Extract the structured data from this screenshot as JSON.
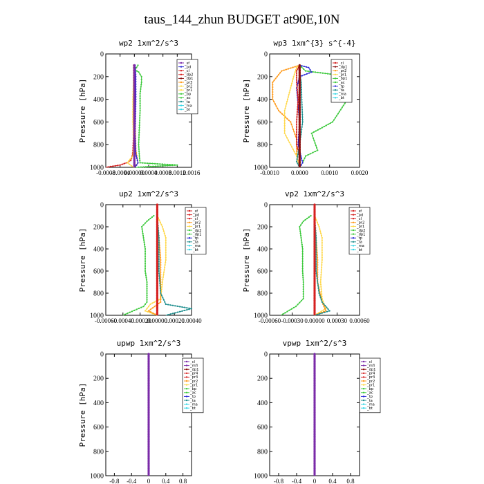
{
  "figure_title": "taus_144_zhun  BUDGET at90E,10N",
  "colors": {
    "red": "#d62020",
    "darkred": "#8a0f0f",
    "orange": "#ff9a1a",
    "yellow": "#ffd84a",
    "green": "#3cc93c",
    "blue": "#2a2ad6",
    "teal": "#1f8f8f",
    "cyan": "#33d6e6",
    "purple": "#7a2aa8",
    "magenta": "#d628d6"
  },
  "chart_data": [
    {
      "type": "line",
      "title": "wp2  1xm^2/s^3",
      "ylabel": "Pressure [hPa]",
      "xlim": [
        -0.0008,
        0.0016
      ],
      "ylim": [
        1000,
        0
      ],
      "xticks": [
        "-0.0008",
        "-0.0004",
        "0.00000",
        "0.0004",
        "0.0008",
        "0.0012",
        "0.0016"
      ],
      "xtick_values": [
        -0.0008,
        -0.0004,
        0,
        0.0004,
        0.0008,
        0.0012,
        0.0016
      ],
      "yticks": [
        "0",
        "200",
        "400",
        "600",
        "800",
        "1000"
      ],
      "legend": [
        "_sf",
        "_pd",
        "_cl",
        "_dp2",
        "_dp1",
        "_pr3",
        "_pr2",
        "_pr1",
        "_bp",
        "_ac",
        "_ta",
        "_ma",
        "_bt"
      ],
      "legend_colors": [
        "#7a2aa8",
        "#2a2ad6",
        "#d62020",
        "#d62020",
        "#8a0f0f",
        "#ff9a1a",
        "#ffd84a",
        "#ffd84a",
        "#3cc93c",
        "#3cc93c",
        "#1f8f8f",
        "#33d6e6",
        "#33d6e6"
      ],
      "series": [
        {
          "color": "#3cc93c",
          "x": [
            0.0001,
            2e-05,
            0.00012,
            0.0002,
            0.0002,
            0.00016,
            0.00016,
            0.00014,
            0.00012,
            0.00014,
            0.00016,
            0.0012,
            5e-05
          ],
          "y": [
            100,
            140,
            160,
            200,
            250,
            350,
            500,
            650,
            800,
            900,
            960,
            980,
            1000
          ]
        },
        {
          "color": "#d62020",
          "x": [
            -2e-05,
            -2e-05,
            -2e-05,
            -2e-05,
            -4e-05,
            -6e-05,
            -0.0001,
            -0.00022,
            -0.0004,
            -0.0008
          ],
          "y": [
            100,
            300,
            500,
            700,
            850,
            900,
            940,
            960,
            980,
            1000
          ]
        },
        {
          "color": "#ffd84a",
          "x": [
            0,
            -2e-05,
            -4e-05,
            -4e-05,
            -2e-05,
            -4e-05,
            -0.0002,
            -2e-05
          ],
          "y": [
            100,
            200,
            400,
            600,
            800,
            900,
            960,
            1000
          ]
        },
        {
          "color": "#ff9a1a",
          "x": [
            0,
            2e-05,
            2e-05,
            4e-05,
            0.0001,
            0
          ],
          "y": [
            100,
            300,
            600,
            850,
            960,
            1000
          ]
        },
        {
          "color": "#2a2ad6",
          "x": [
            2e-05,
            4e-05,
            4e-05,
            2e-05,
            4e-05,
            0.0001,
            2e-05
          ],
          "y": [
            100,
            200,
            400,
            700,
            880,
            960,
            1000
          ]
        },
        {
          "color": "#7a2aa8",
          "x": [
            0,
            0,
            0,
            0,
            0,
            0
          ],
          "y": [
            100,
            300,
            500,
            700,
            900,
            1000
          ]
        }
      ]
    },
    {
      "type": "line",
      "title": "wp3  1xm^{3} s^{-4}",
      "ylabel": "Pressure [hPa]",
      "xlim": [
        -0.001,
        0.002
      ],
      "ylim": [
        1000,
        0
      ],
      "xticks": [
        "-0.0010",
        "0.0000",
        "0.0010",
        "0.0020"
      ],
      "xtick_values": [
        -0.001,
        0,
        0.001,
        0.002
      ],
      "yticks": [
        "0",
        "200",
        "400",
        "600",
        "800",
        "1000"
      ],
      "legend": [
        "_cl",
        "_dp1",
        "_pr2",
        "_pr1",
        "_bp1",
        "_ac",
        "_tp",
        "_ta",
        "_ma",
        "_bt"
      ],
      "legend_colors": [
        "#d62020",
        "#8a0f0f",
        "#ff9a1a",
        "#ffd84a",
        "#3cc93c",
        "#3cc93c",
        "#2a2ad6",
        "#1f8f8f",
        "#33d6e6",
        "#33d6e6"
      ],
      "series": [
        {
          "color": "#3cc93c",
          "x": [
            0,
            0.0002,
            0.0011,
            0.0017,
            0.0016,
            0.0011,
            0.0004,
            0.0006,
            0.0002,
            0.0001,
            0
          ],
          "y": [
            100,
            150,
            180,
            250,
            400,
            600,
            700,
            850,
            900,
            960,
            1000
          ]
        },
        {
          "color": "#ff9a1a",
          "x": [
            0,
            -0.0006,
            -0.0009,
            -0.0009,
            -0.0007,
            -0.0003,
            -0.0001,
            -0.0001,
            0
          ],
          "y": [
            100,
            150,
            250,
            400,
            500,
            600,
            750,
            900,
            1000
          ]
        },
        {
          "color": "#ffd84a",
          "x": [
            0,
            -0.0001,
            -0.0002,
            -0.0003,
            -0.0004,
            -0.0005,
            -0.0005,
            -0.0003,
            -0.0001,
            0
          ],
          "y": [
            100,
            120,
            200,
            300,
            400,
            500,
            700,
            800,
            900,
            1000
          ]
        },
        {
          "color": "#2a2ad6",
          "x": [
            0,
            0.0003,
            0.0004,
            0,
            -0.0001,
            0,
            -5e-05,
            0.0001,
            0
          ],
          "y": [
            100,
            120,
            160,
            200,
            300,
            600,
            800,
            960,
            1000
          ]
        },
        {
          "color": "#d62020",
          "x": [
            0,
            -0.0001,
            -0.0001,
            -5e-05,
            -0.0001,
            -0.0001,
            0,
            0
          ],
          "y": [
            100,
            150,
            250,
            400,
            600,
            800,
            900,
            1000
          ]
        },
        {
          "color": "#1f8f8f",
          "x": [
            0,
            5e-05,
            0.0001,
            0,
            -0.0001,
            0
          ],
          "y": [
            150,
            250,
            600,
            800,
            950,
            1000
          ]
        },
        {
          "color": "#8a0f0f",
          "x": [
            0,
            0,
            0,
            0,
            0
          ],
          "y": [
            100,
            300,
            600,
            800,
            1000
          ]
        }
      ]
    },
    {
      "type": "line",
      "title": "up2  1xm^2/s^3",
      "ylabel": "Pressure [hPa]",
      "xlim": [
        -0.0006,
        0.0004
      ],
      "ylim": [
        1000,
        0
      ],
      "xticks": [
        "-0.00060",
        "-0.00040",
        "-0.00020",
        "0.00000",
        "0.00020",
        "0.00040"
      ],
      "xtick_values": [
        -0.0006,
        -0.0004,
        -0.0002,
        0,
        0.0002,
        0.0004
      ],
      "yticks": [
        "0",
        "200",
        "400",
        "600",
        "800",
        "1000"
      ],
      "legend": [
        "_sf",
        "_pd",
        "_cl",
        "_pr2",
        "_pr1",
        "_dp2",
        "_dp1",
        "_tp",
        "_ta",
        "_ma",
        "_bt"
      ],
      "legend_colors": [
        "#d62020",
        "#d62020",
        "#d62020",
        "#ff9a1a",
        "#ffd84a",
        "#3cc93c",
        "#3cc93c",
        "#2a2ad6",
        "#1f8f8f",
        "#33d6e6",
        "#33d6e6"
      ],
      "series": [
        {
          "color": "#3cc93c",
          "x": [
            -4e-05,
            -0.00012,
            -0.00018,
            -0.00016,
            -0.00014,
            -0.00014,
            -0.00012,
            -0.00012,
            -0.00012,
            -0.00016,
            -0.0004
          ],
          "y": [
            100,
            150,
            200,
            300,
            400,
            600,
            700,
            800,
            880,
            920,
            1000
          ]
        },
        {
          "color": "#ffd84a",
          "x": [
            0,
            6e-05,
            0.0001,
            0.0001,
            6e-05,
            4e-05,
            -8e-05,
            -0.00014,
            0
          ],
          "y": [
            100,
            200,
            300,
            500,
            700,
            850,
            900,
            960,
            1000
          ]
        },
        {
          "color": "#ff9a1a",
          "x": [
            0,
            2e-05,
            4e-05,
            4e-05,
            4e-05,
            -0.0001,
            0
          ],
          "y": [
            100,
            300,
            500,
            700,
            880,
            960,
            1000
          ]
        },
        {
          "color": "#1f8f8f",
          "x": [
            0,
            2e-05,
            2e-05,
            4e-05,
            0.0001,
            0.0004,
            0.0001
          ],
          "y": [
            100,
            300,
            600,
            800,
            900,
            940,
            1000
          ]
        },
        {
          "color": "#d62020",
          "x": [
            0,
            0,
            0,
            0,
            0,
            0
          ],
          "y": [
            0,
            200,
            400,
            600,
            800,
            1000
          ]
        }
      ]
    },
    {
      "type": "line",
      "title": "vp2  1xm^2/s^3",
      "ylabel": "Pressure [hPa]",
      "xlim": [
        -0.0006,
        0.0006
      ],
      "ylim": [
        1000,
        0
      ],
      "xticks": [
        "-0.00060",
        "-0.00030",
        "0.00000",
        "0.00030",
        "0.00060"
      ],
      "xtick_values": [
        -0.0006,
        -0.0003,
        0,
        0.0003,
        0.0006
      ],
      "yticks": [
        "0",
        "200",
        "400",
        "600",
        "800",
        "1000"
      ],
      "legend": [
        "_sf",
        "_pd",
        "_cl",
        "_pr2",
        "_pr1",
        "_dp2",
        "_dp1",
        "_tp",
        "_ta",
        "_ma",
        "_bt"
      ],
      "legend_colors": [
        "#d62020",
        "#d62020",
        "#d62020",
        "#ff9a1a",
        "#ffd84a",
        "#3cc93c",
        "#3cc93c",
        "#2a2ad6",
        "#1f8f8f",
        "#33d6e6",
        "#33d6e6"
      ],
      "series": [
        {
          "color": "#3cc93c",
          "x": [
            -5e-05,
            -0.00015,
            -0.0002,
            -0.00018,
            -0.00016,
            -0.00016,
            -0.00015,
            -0.00015,
            -0.00025,
            -0.00045
          ],
          "y": [
            100,
            150,
            200,
            300,
            400,
            600,
            700,
            850,
            920,
            1000
          ]
        },
        {
          "color": "#ffd84a",
          "x": [
            0,
            6e-05,
            0.0001,
            0.0001,
            8e-05,
            0.0001,
            0.00015,
            0
          ],
          "y": [
            100,
            200,
            300,
            500,
            700,
            850,
            940,
            1000
          ]
        },
        {
          "color": "#ff9a1a",
          "x": [
            0,
            2e-05,
            4e-05,
            4e-05,
            0.0001,
            0.00015,
            0
          ],
          "y": [
            100,
            300,
            500,
            700,
            880,
            960,
            1000
          ]
        },
        {
          "color": "#1f8f8f",
          "x": [
            0,
            2e-05,
            2e-05,
            6e-05,
            0.0001,
            0.0002,
            0
          ],
          "y": [
            100,
            300,
            600,
            800,
            880,
            960,
            1000
          ]
        },
        {
          "color": "#d62020",
          "x": [
            0,
            0,
            0,
            0,
            0,
            0
          ],
          "y": [
            0,
            200,
            400,
            600,
            800,
            1000
          ]
        }
      ]
    },
    {
      "type": "line",
      "title": "upwp  1xm^2/s^3",
      "ylabel": "Pressure [hPa]",
      "xlim": [
        -1,
        1
      ],
      "ylim": [
        1000,
        0
      ],
      "xticks": [
        "-0.8",
        "-0.4",
        "0",
        "0.4",
        "0.8"
      ],
      "xtick_values": [
        -0.8,
        -0.4,
        0,
        0.4,
        0.8
      ],
      "yticks": [
        "0",
        "200",
        "400",
        "600",
        "800",
        "1000"
      ],
      "legend": [
        "_cl",
        "_mfl",
        "_dp1",
        "_pr4",
        "_pr3",
        "_pr2",
        "_pr1",
        "_bp",
        "_ac",
        "_tp",
        "_ta",
        "_ma",
        "_bt"
      ],
      "legend_colors": [
        "#7a2aa8",
        "#7a2aa8",
        "#8a0f0f",
        "#d62020",
        "#d62020",
        "#ff9a1a",
        "#ffd84a",
        "#3cc93c",
        "#3cc93c",
        "#2a2ad6",
        "#1f8f8f",
        "#33d6e6",
        "#33d6e6"
      ],
      "series": [
        {
          "color": "#7a2aa8",
          "x": [
            0,
            0,
            0,
            0,
            0,
            0
          ],
          "y": [
            0,
            200,
            400,
            600,
            800,
            1000
          ]
        }
      ]
    },
    {
      "type": "line",
      "title": "vpwp  1xm^2/s^3",
      "ylabel": "",
      "xlim": [
        -1,
        1
      ],
      "ylim": [
        1000,
        0
      ],
      "xticks": [
        "-0.8",
        "-0.4",
        "0",
        "0.4",
        "0.8"
      ],
      "xtick_values": [
        -0.8,
        -0.4,
        0,
        0.4,
        0.8
      ],
      "yticks": [
        "0",
        "200",
        "400",
        "600",
        "800",
        "1000"
      ],
      "legend": [
        "_cl",
        "_mfl",
        "_dp1",
        "_pr4",
        "_pr3",
        "_pr2",
        "_pr1",
        "_bp",
        "_ac",
        "_tp",
        "_ta",
        "_ma",
        "_bt"
      ],
      "legend_colors": [
        "#7a2aa8",
        "#7a2aa8",
        "#8a0f0f",
        "#d62020",
        "#d62020",
        "#ff9a1a",
        "#ffd84a",
        "#3cc93c",
        "#3cc93c",
        "#2a2ad6",
        "#1f8f8f",
        "#33d6e6",
        "#33d6e6"
      ],
      "series": [
        {
          "color": "#7a2aa8",
          "x": [
            0,
            0,
            0,
            0,
            0,
            0
          ],
          "y": [
            0,
            200,
            400,
            600,
            800,
            1000
          ]
        }
      ]
    }
  ]
}
